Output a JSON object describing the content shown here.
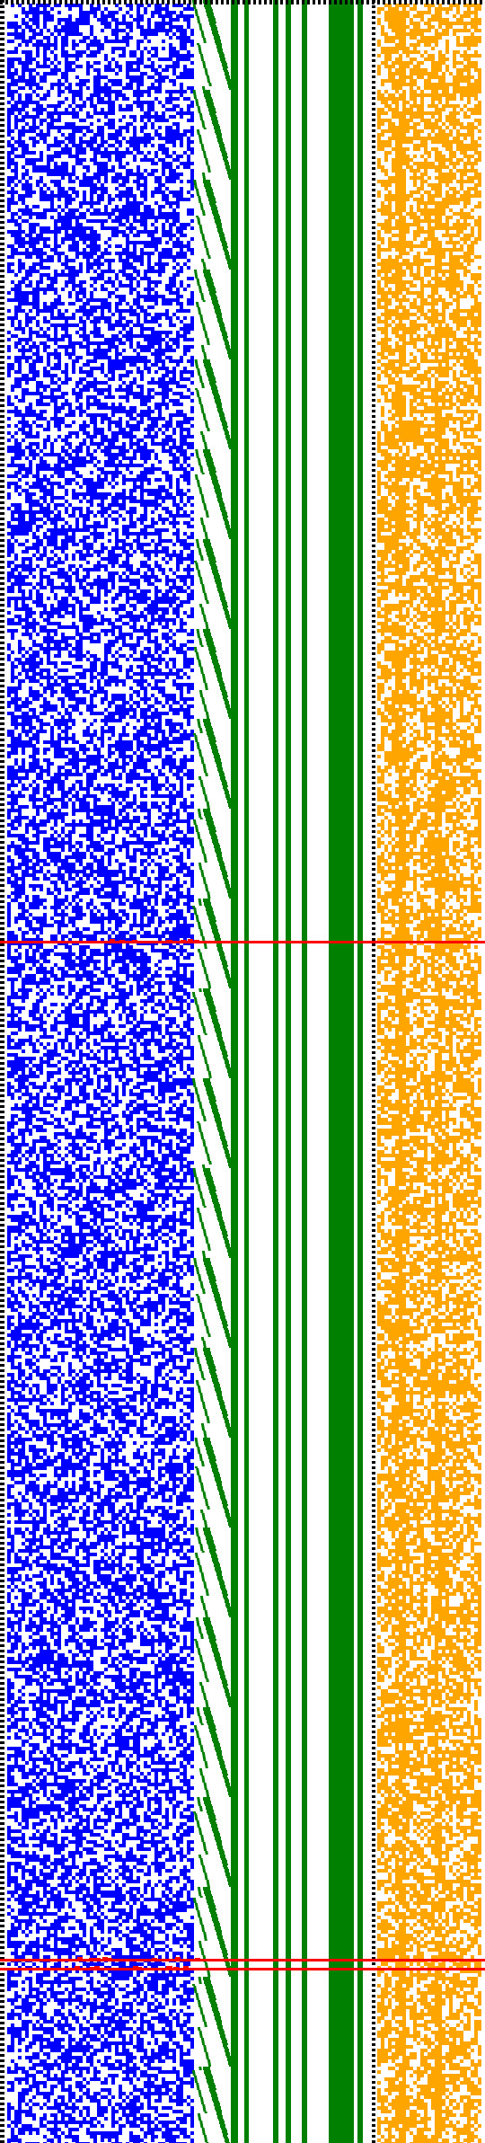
{
  "colors": {
    "background": "#ffffff",
    "blue_cells": "#0000ff",
    "green_bands": "#008000",
    "orange_cells": "#ffa500",
    "red_markers": "#ff0000",
    "dotted_border": "#000000"
  },
  "regions": [
    {
      "name": "blue-random-cells",
      "color": "blue"
    },
    {
      "name": "green-staircase",
      "color": "green"
    },
    {
      "name": "green-vertical-bands",
      "color": "green"
    },
    {
      "name": "orange-random-cells",
      "color": "orange"
    }
  ],
  "markers": [
    {
      "name": "red-horizontal-marker",
      "count": 3
    }
  ]
}
